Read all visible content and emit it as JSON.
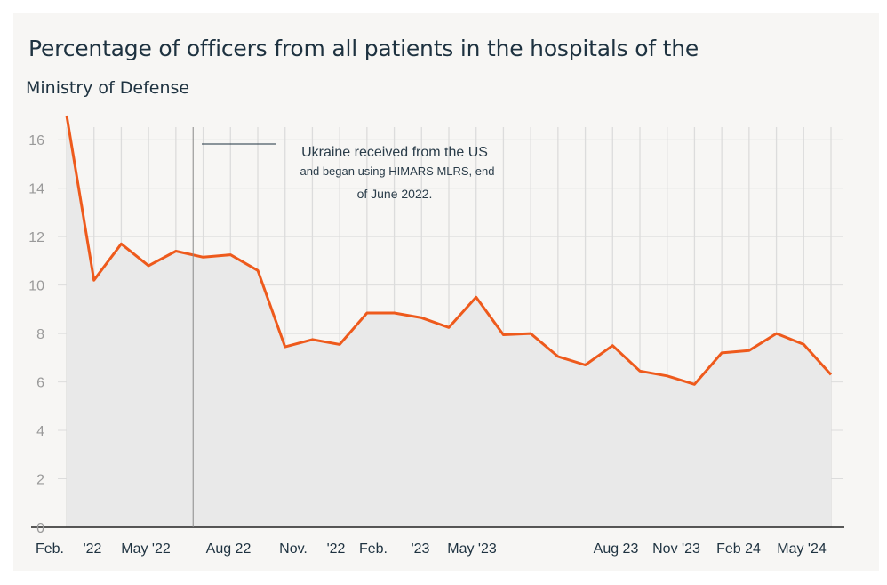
{
  "title": "Percentage of officers from all patients in the hospitals of the",
  "subtitle": "Ministry of Defense",
  "annotation": {
    "line1": "Ukraine received from the US",
    "line2": "and began using HIMARS MLRS, end",
    "line3": "of June 2022."
  },
  "colors": {
    "line": "#ee5a1c",
    "area": "#e9e9e9",
    "grid": "#dcdcdc",
    "axis": "#222222"
  },
  "chart_data": {
    "type": "area",
    "title": "Percentage of officers from all patients in the hospitals of the Ministry of Defense",
    "xlabel": "",
    "ylabel": "",
    "ylim": [
      0,
      17
    ],
    "grid": true,
    "x_tick_labels": [
      "Feb.",
      "'22",
      "May '22",
      "Aug 22",
      "Nov.",
      "'22",
      "Feb.",
      "'23",
      "May '23",
      "Aug 23",
      "Nov '23",
      "Feb 24",
      "May '24"
    ],
    "y_ticks": [
      0,
      2,
      4,
      6,
      8,
      10,
      12,
      14,
      16
    ],
    "x": [
      "Feb '22",
      "Mar '22",
      "Apr '22",
      "May '22",
      "Jun '22",
      "Jul '22",
      "Aug '22",
      "Sep '22",
      "Oct '22",
      "Nov '22",
      "Dec '22",
      "Jan '23",
      "Feb '23",
      "Mar '23",
      "Apr '23",
      "May '23",
      "Jun '23",
      "Jul '23",
      "Aug '23",
      "Sep '23",
      "Oct '23",
      "Nov '23",
      "Dec '23",
      "Jan '24",
      "Feb '24",
      "Mar '24",
      "Apr '24",
      "May '24",
      "Jun '24"
    ],
    "values": [
      17.2,
      10.2,
      11.7,
      10.8,
      11.4,
      11.15,
      11.25,
      10.6,
      7.45,
      7.75,
      7.55,
      8.85,
      8.85,
      8.65,
      8.25,
      9.5,
      7.95,
      8.0,
      7.05,
      6.7,
      7.5,
      6.45,
      6.25,
      5.9,
      7.2,
      7.3,
      8.0,
      7.55,
      6.3
    ],
    "annotation_marker": "Jul '22"
  }
}
